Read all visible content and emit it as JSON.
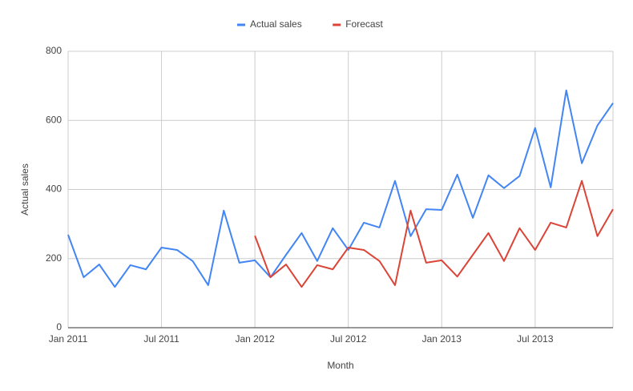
{
  "chart_data": {
    "type": "line",
    "x_label": "Month",
    "y_label": "Actual sales",
    "categories": [
      "Jan 2011",
      null,
      null,
      null,
      null,
      null,
      "Jul 2011",
      null,
      null,
      null,
      null,
      null,
      "Jan 2012",
      null,
      null,
      null,
      null,
      null,
      "Jul 2012",
      null,
      null,
      null,
      null,
      null,
      "Jan 2013",
      null,
      null,
      null,
      null,
      null,
      "Jul 2013",
      null,
      null,
      null,
      null,
      null
    ],
    "series": [
      {
        "name": "Actual sales",
        "color": "#4285f4",
        "values": [
          269,
          146,
          183,
          118,
          181,
          169,
          232,
          225,
          193,
          123,
          339,
          188,
          195,
          146,
          211,
          274,
          193,
          288,
          225,
          304,
          290,
          425,
          265,
          343,
          341,
          443,
          318,
          441,
          404,
          439,
          578,
          406,
          687,
          476,
          585,
          650
        ]
      },
      {
        "name": "Forecast",
        "color": "#db4437",
        "values": [
          null,
          null,
          null,
          null,
          null,
          null,
          null,
          null,
          null,
          null,
          null,
          null,
          266,
          146,
          183,
          118,
          181,
          169,
          232,
          225,
          193,
          123,
          339,
          188,
          195,
          148,
          211,
          274,
          193,
          288,
          225,
          304,
          290,
          425,
          265,
          343
        ]
      }
    ],
    "ylim": [
      0,
      800
    ],
    "yticks": [
      0,
      200,
      400,
      600,
      800
    ],
    "grid": true,
    "legend": "top"
  }
}
